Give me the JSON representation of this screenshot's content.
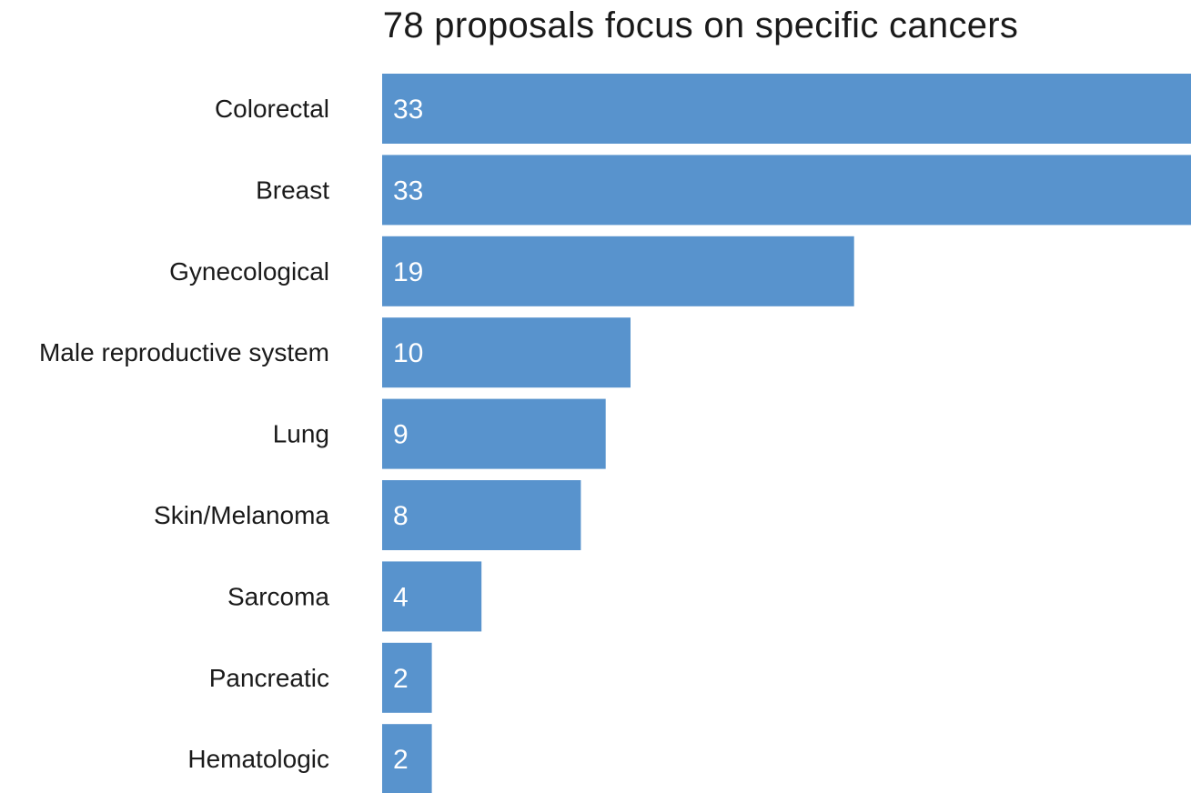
{
  "chart_data": {
    "type": "bar",
    "orientation": "horizontal",
    "title": "78 proposals focus on specific cancers",
    "categories": [
      "Colorectal",
      "Breast",
      "Gynecological",
      "Male reproductive system",
      "Lung",
      "Skin/Melanoma",
      "Sarcoma",
      "Pancreatic",
      "Hematologic"
    ],
    "values": [
      33,
      33,
      19,
      10,
      9,
      8,
      4,
      2,
      2
    ],
    "xlabel": "",
    "ylabel": "",
    "grid": false,
    "legend": "none",
    "bar_color": "#5893cd",
    "value_label_color": "#ffffff"
  }
}
